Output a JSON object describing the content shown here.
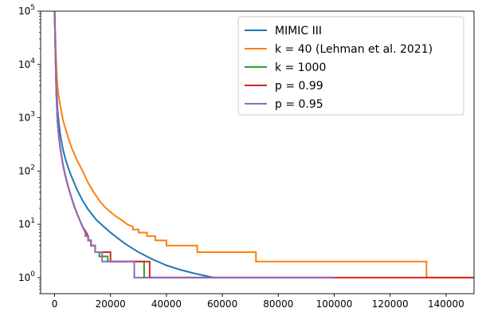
{
  "chart_data": {
    "type": "line",
    "xlabel": "",
    "ylabel": "",
    "xlim": [
      -5000,
      150000
    ],
    "ylim": [
      0.5,
      100000
    ],
    "yscale": "log",
    "grid": false,
    "legend_position": "top-right",
    "x_ticks": [
      {
        "value": 0,
        "label": "0"
      },
      {
        "value": 20000,
        "label": "20000"
      },
      {
        "value": 40000,
        "label": "40000"
      },
      {
        "value": 60000,
        "label": "60000"
      },
      {
        "value": 80000,
        "label": "80000"
      },
      {
        "value": 100000,
        "label": "100000"
      },
      {
        "value": 120000,
        "label": "120000"
      },
      {
        "value": 140000,
        "label": "140000"
      }
    ],
    "y_ticks": [
      {
        "value": 1,
        "base": "10",
        "exp": "0"
      },
      {
        "value": 10,
        "base": "10",
        "exp": "1"
      },
      {
        "value": 100,
        "base": "10",
        "exp": "2"
      },
      {
        "value": 1000,
        "base": "10",
        "exp": "3"
      },
      {
        "value": 10000,
        "base": "10",
        "exp": "4"
      },
      {
        "value": 100000,
        "base": "10",
        "exp": "5"
      }
    ],
    "series": [
      {
        "name": "MIMIC III",
        "color": "#1f77b4",
        "step": false,
        "x": [
          0,
          300,
          600,
          1000,
          1500,
          2000,
          3000,
          4000,
          5000,
          6000,
          8000,
          10000,
          12000,
          15000,
          20000,
          25000,
          30000,
          35000,
          40000,
          45000,
          50000,
          55000,
          57000
        ],
        "y": [
          100000,
          20000,
          5000,
          1500,
          800,
          500,
          250,
          160,
          110,
          80,
          45,
          28,
          19,
          12,
          7,
          4.4,
          3,
          2.2,
          1.7,
          1.4,
          1.2,
          1.05,
          1
        ]
      },
      {
        "name": "k = 40 (Lehman et al. 2021)",
        "color": "#ff7f0e",
        "step": false,
        "x": [
          0,
          300,
          600,
          1000,
          1500,
          2000,
          3000,
          4000,
          5000,
          6000,
          8000,
          10000,
          12000,
          14000,
          16000,
          18000,
          20000,
          22000,
          24000,
          26000,
          28000,
          28000,
          30000,
          30000,
          33000,
          33000,
          36000,
          36000,
          40000,
          40000,
          51000,
          51000,
          72000,
          72000,
          133000,
          133000,
          150000
        ],
        "y": [
          100000,
          30000,
          10000,
          4000,
          2500,
          1700,
          900,
          600,
          400,
          280,
          160,
          100,
          60,
          40,
          28,
          21,
          17,
          14,
          12,
          10,
          9,
          8,
          8,
          7,
          7,
          6,
          6,
          5,
          5,
          4,
          4,
          3,
          3,
          2,
          2,
          1,
          1
        ]
      },
      {
        "name": "k = 1000",
        "color": "#2ca02c",
        "step": false,
        "x": [
          0,
          300,
          600,
          1000,
          1500,
          2000,
          3000,
          4000,
          5000,
          6000,
          7000,
          8000,
          9000,
          10000,
          11000,
          12000,
          12000,
          13000,
          13000,
          14500,
          14500,
          16000,
          16000,
          19000,
          19000,
          32000,
          32000,
          100000
        ],
        "y": [
          100000,
          15000,
          3000,
          900,
          450,
          270,
          130,
          75,
          48,
          32,
          22,
          16,
          12,
          9,
          7.5,
          6,
          5,
          5,
          4,
          4,
          3,
          3,
          2.5,
          2.5,
          2,
          2,
          1,
          1
        ]
      },
      {
        "name": "p = 0.99",
        "color": "#d62728",
        "step": false,
        "x": [
          0,
          300,
          600,
          1000,
          1500,
          2000,
          3000,
          4000,
          5000,
          6000,
          7000,
          8000,
          9000,
          10000,
          11000,
          12000,
          12000,
          13000,
          13000,
          14500,
          14500,
          16000,
          16000,
          20000,
          20000,
          34000,
          34000,
          150000
        ],
        "y": [
          100000,
          15000,
          3000,
          900,
          450,
          270,
          130,
          75,
          48,
          32,
          22,
          16,
          12,
          9,
          7.5,
          6,
          5,
          5,
          4,
          4,
          3,
          3,
          3,
          3,
          2,
          2,
          1,
          1
        ]
      },
      {
        "name": "p = 0.95",
        "color": "#9467bd",
        "step": false,
        "x": [
          0,
          300,
          600,
          1000,
          1500,
          2000,
          3000,
          4000,
          5000,
          6000,
          7000,
          8000,
          9000,
          10000,
          11000,
          11000,
          12000,
          12000,
          13000,
          13000,
          14500,
          14500,
          17000,
          17000,
          28500,
          28500,
          100000
        ],
        "y": [
          100000,
          15000,
          3000,
          900,
          450,
          270,
          130,
          75,
          48,
          32,
          22,
          16,
          12,
          9,
          7,
          6,
          6,
          5,
          5,
          4,
          4,
          3,
          3,
          2,
          2,
          1,
          1
        ]
      }
    ]
  }
}
